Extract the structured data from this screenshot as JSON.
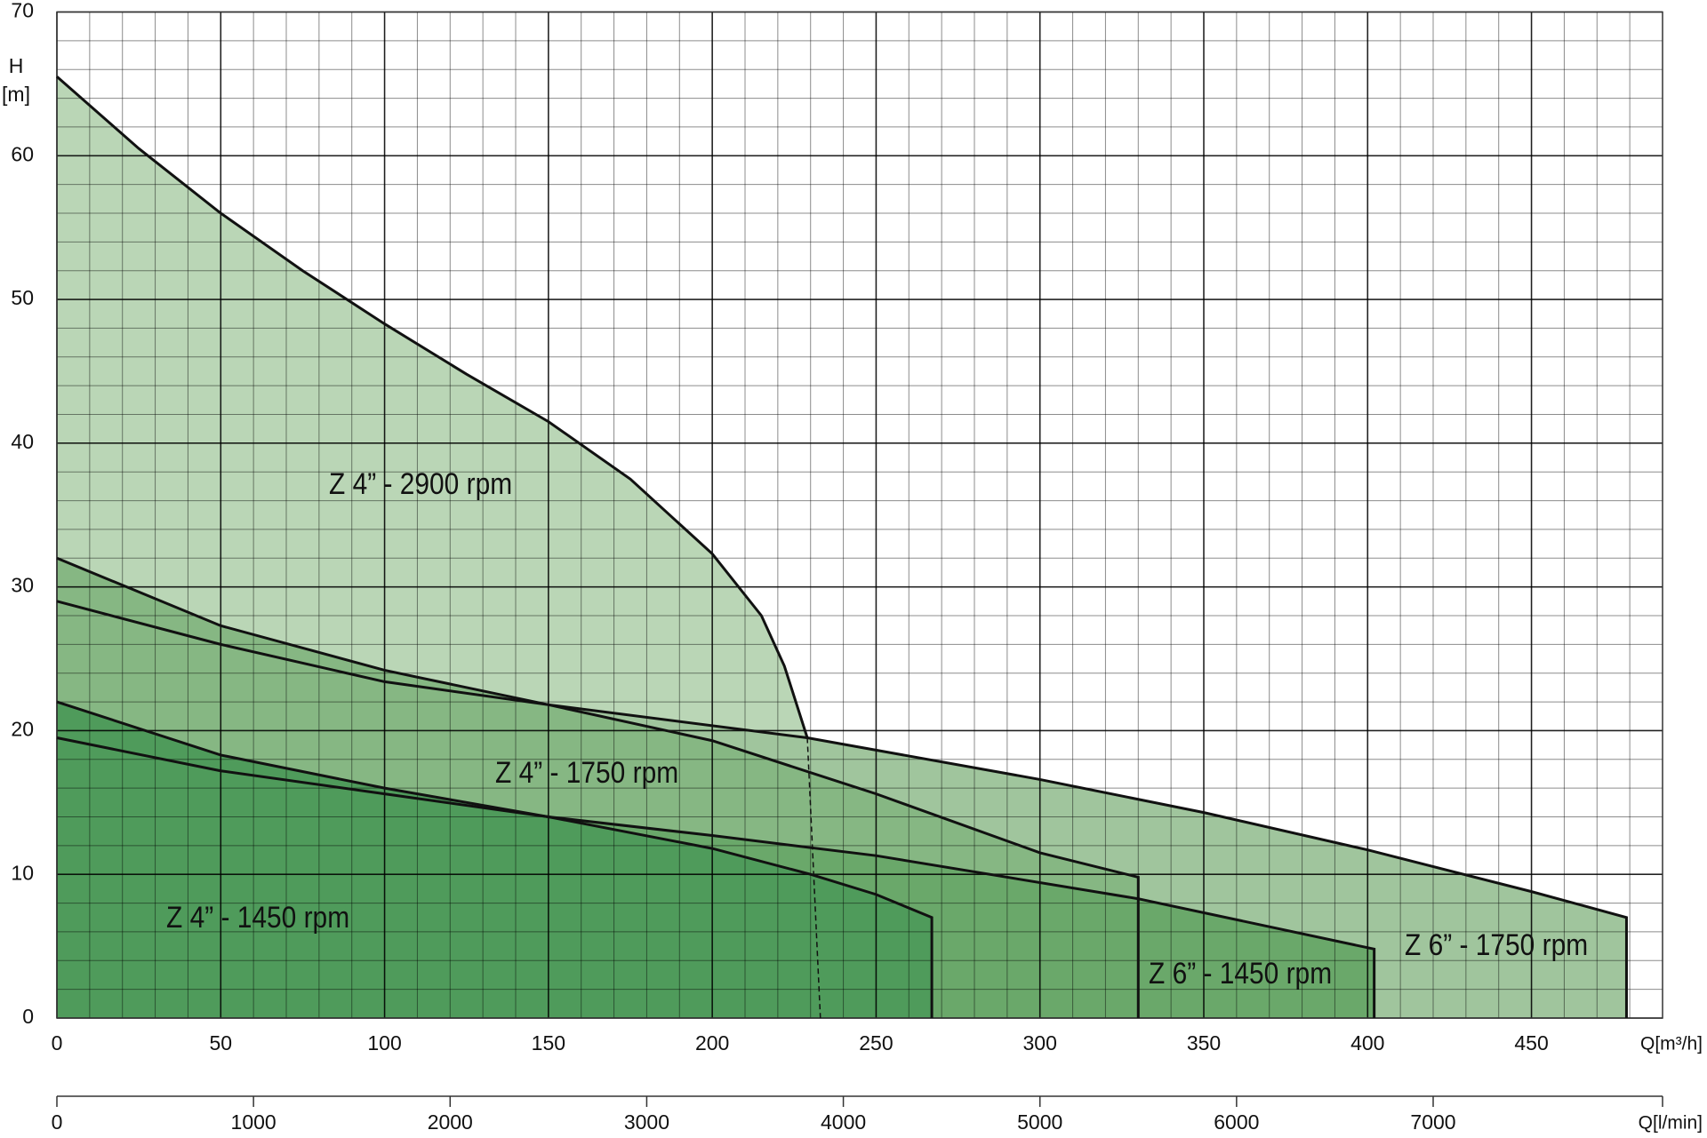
{
  "chart_data": {
    "type": "area",
    "y_label": "H",
    "y_unit": "[m]",
    "x_label": "Q[m³/h]",
    "xlim": [
      0,
      490
    ],
    "ylim": [
      0,
      70
    ],
    "xticks": [
      0,
      50,
      100,
      150,
      200,
      250,
      300,
      350,
      400,
      450
    ],
    "yticks": [
      0,
      10,
      20,
      30,
      40,
      50,
      60,
      70
    ],
    "grid": true,
    "minor_grid": {
      "x": 10,
      "y": 2
    },
    "second_x_axis": {
      "label": "Q[l/min]",
      "lim": [
        0,
        8166.67
      ],
      "ticks": [
        0,
        1000,
        2000,
        3000,
        4000,
        5000,
        6000,
        7000
      ]
    },
    "series": [
      {
        "name": "Z 4” - 2900 rpm",
        "color": "#bad6b6",
        "drop_line": false,
        "x": [
          0,
          25,
          50,
          75,
          100,
          125,
          150,
          175,
          200,
          215,
          222,
          229
        ],
        "values": [
          65.5,
          60.5,
          56,
          52,
          48.3,
          44.8,
          41.5,
          37.5,
          32.3,
          28,
          24.5,
          19.5
        ]
      },
      {
        "name": "Z 6” - 1750 rpm",
        "color": "#a0c59d",
        "drop_line": true,
        "x": [
          0,
          50,
          100,
          150,
          229,
          300,
          350,
          400,
          450,
          479
        ],
        "values": [
          29,
          26,
          23.4,
          21.8,
          19.5,
          16.6,
          14.3,
          11.7,
          8.8,
          7
        ]
      },
      {
        "name": "Z 4” - 1750 rpm",
        "color": "#86b783",
        "drop_line": true,
        "x": [
          0,
          50,
          100,
          150,
          200,
          250,
          300,
          330
        ],
        "values": [
          32,
          27.3,
          24.2,
          21.8,
          19.3,
          15.6,
          11.5,
          9.8
        ]
      },
      {
        "name": "Z 6” - 1450 rpm",
        "color": "#6aa86a",
        "drop_line": true,
        "x": [
          0,
          50,
          100,
          150,
          200,
          250,
          330,
          402
        ],
        "values": [
          19.5,
          17.2,
          15.6,
          14,
          12.7,
          11.3,
          8.3,
          4.8
        ]
      },
      {
        "name": "Z 4” - 1450 rpm",
        "color": "#4f9b5b",
        "drop_line": true,
        "x": [
          0,
          50,
          100,
          150,
          200,
          230,
          250,
          267
        ],
        "values": [
          22,
          18.3,
          16,
          14,
          11.8,
          10,
          8.6,
          7
        ]
      }
    ],
    "dashed_boundary": {
      "x": [
        229,
        233
      ],
      "values": [
        19.5,
        0
      ]
    }
  }
}
